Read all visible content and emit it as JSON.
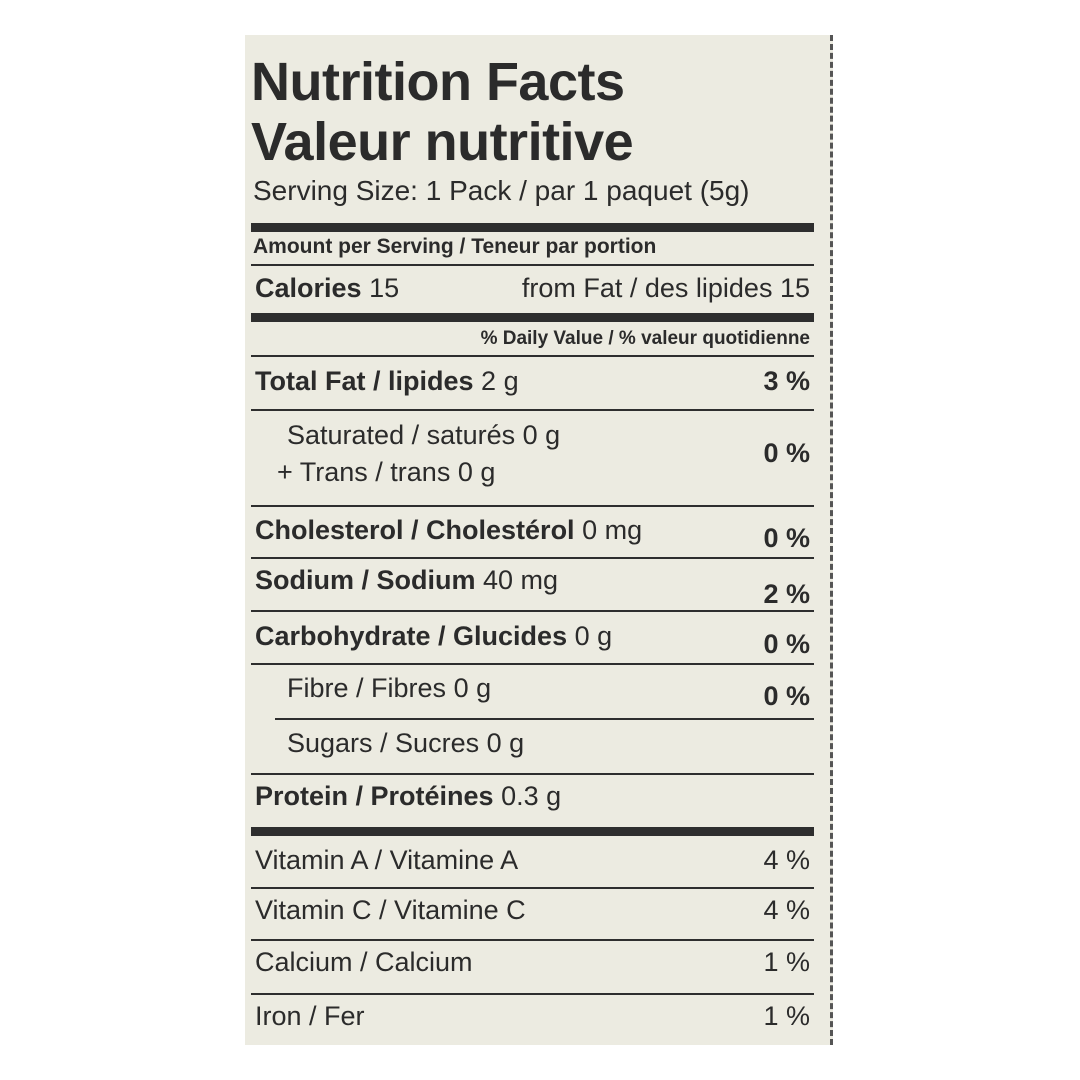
{
  "title_en": "Nutrition Facts",
  "title_fr": "Valeur nutritive",
  "serving_size": "Serving Size: 1 Pack / par 1 paquet (5g)",
  "amount_per_serving": "Amount per Serving / Teneur par portion",
  "calories": {
    "label": "Calories",
    "value": "15",
    "from_fat": "from Fat / des lipides 15"
  },
  "daily_value_header": "% Daily Value / % valeur quotidienne",
  "nutrients": [
    {
      "label": "Total Fat / lipides",
      "amount": "2 g",
      "dv": "3 %"
    },
    {
      "label": "Saturated / saturés",
      "amount": "0 g",
      "dv": "0 %"
    },
    {
      "label": "+ Trans / trans",
      "amount": "0 g",
      "dv": ""
    },
    {
      "label": "Cholesterol / Cholestérol",
      "amount": "0 mg",
      "dv": "0 %"
    },
    {
      "label": "Sodium / Sodium",
      "amount": "40 mg",
      "dv": "2 %"
    },
    {
      "label": "Carbohydrate / Glucides",
      "amount": "0 g",
      "dv": "0 %"
    },
    {
      "label": "Fibre / Fibres",
      "amount": "0 g",
      "dv": "0 %"
    },
    {
      "label": "Sugars / Sucres",
      "amount": "0 g",
      "dv": ""
    },
    {
      "label": "Protein / Protéines",
      "amount": "0.3 g",
      "dv": ""
    }
  ],
  "vitamins": [
    {
      "label": "Vitamin A /  Vitamine A",
      "dv": "4 %"
    },
    {
      "label": "Vitamin C /  Vitamine C",
      "dv": "4 %"
    },
    {
      "label": "Calcium / Calcium",
      "dv": "1 %"
    },
    {
      "label": "Iron / Fer",
      "dv": "1 %"
    }
  ]
}
